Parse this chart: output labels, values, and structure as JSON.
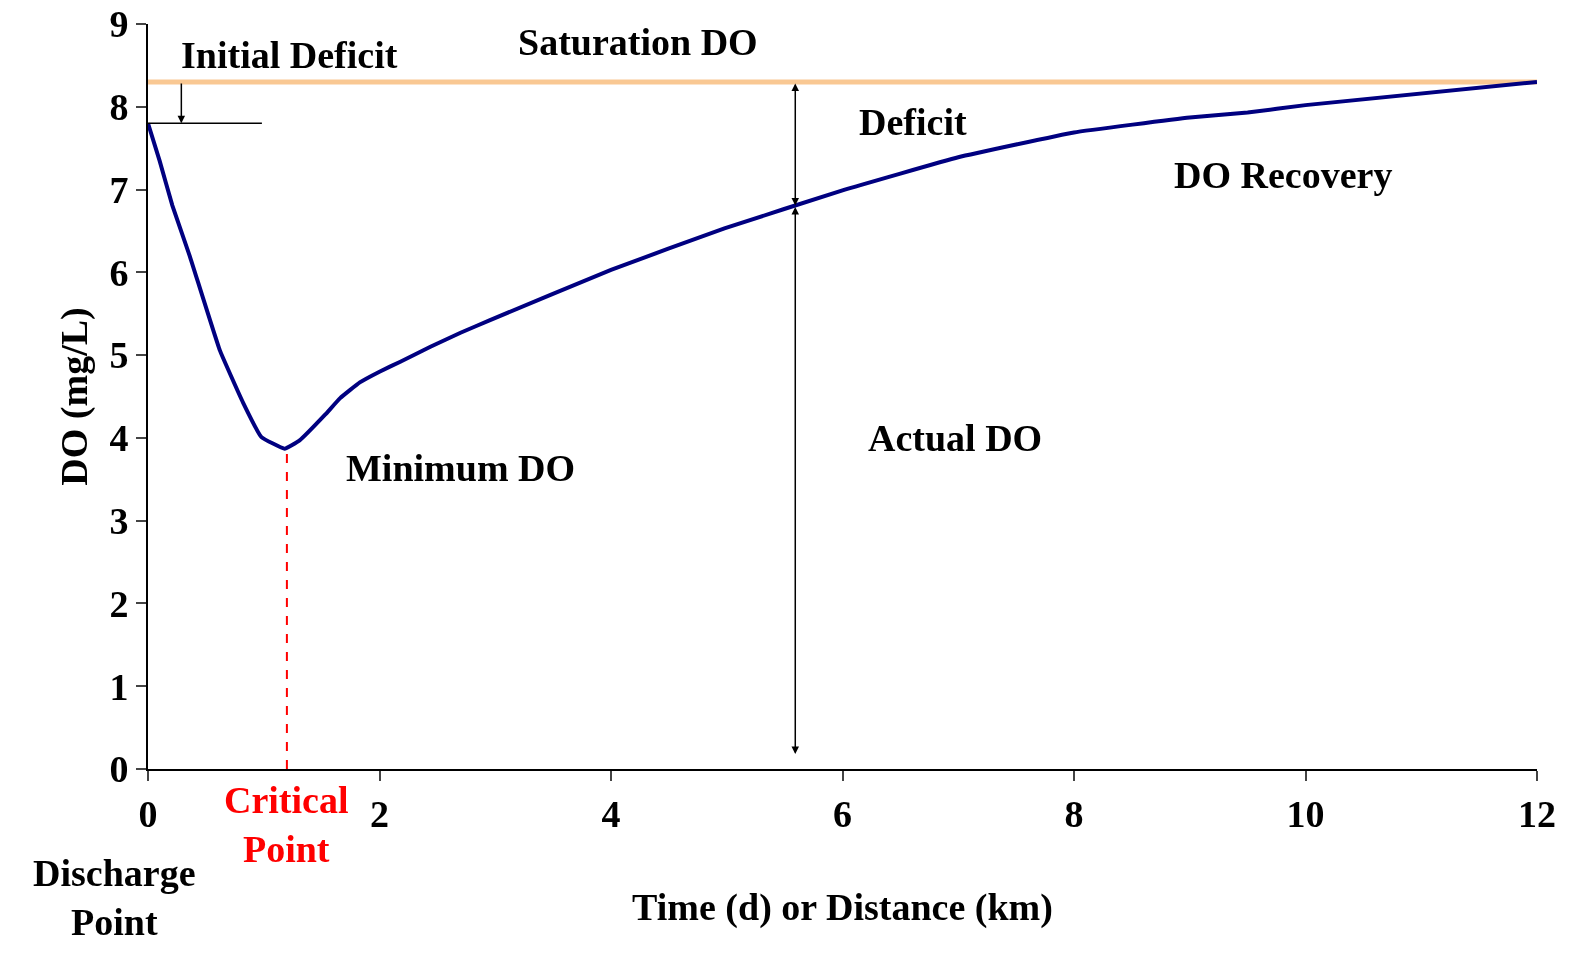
{
  "chart_data": {
    "type": "line",
    "xlabel": "Time (d) or Distance (km)",
    "ylabel": "DO (mg/L)",
    "x": [
      0,
      0.1,
      0.21,
      0.36,
      0.62,
      0.82,
      0.98,
      1.18,
      1.31,
      1.53,
      1.66,
      1.83,
      2.0,
      2.18,
      2.44,
      2.7,
      2.95,
      4.0,
      4.98,
      6.0,
      7.0,
      8.0,
      9.0,
      9.5,
      10.0,
      12.0
    ],
    "series": [
      {
        "color": "#000080",
        "values": [
          7.8,
          7.35,
          6.81,
          6.2,
          5.06,
          4.43,
          4.01,
          3.87,
          3.97,
          4.28,
          4.48,
          4.67,
          4.8,
          4.92,
          5.1,
          5.27,
          5.42,
          6.03,
          6.53,
          6.99,
          7.39,
          7.69,
          7.87,
          7.93,
          8.02,
          8.3
        ]
      }
    ],
    "xlim": [
      0,
      12
    ],
    "xticks": [
      0,
      2,
      4,
      6,
      8,
      10,
      12
    ],
    "ylim": [
      0,
      9
    ],
    "yticks": [
      0,
      1,
      2,
      3,
      4,
      5,
      6,
      7,
      8,
      9
    ],
    "marker": "none",
    "line_style": "solid",
    "ref_lines": [
      {
        "axis": "y",
        "value": 8.3,
        "label": null,
        "color": "#f9c893",
        "line_style": "solid"
      },
      {
        "axis": "x",
        "value": 1.2,
        "label": "Critical Point",
        "color": "#ff0000",
        "line_style": "dashed"
      }
    ],
    "annotations": [
      "Saturation DO",
      {
        "text": "Initial Deficit",
        "x": 0,
        "y": 7.8
      },
      "Deficit",
      "DO Recovery",
      "Actual DO",
      "Minimum DO",
      "Discharge Point"
    ]
  }
}
